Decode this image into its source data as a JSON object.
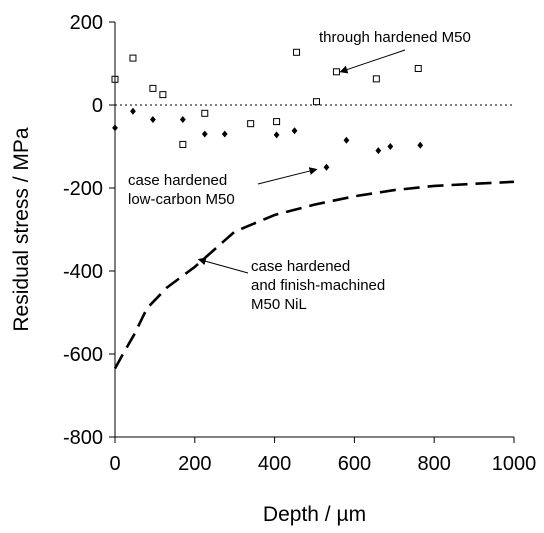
{
  "chart_data": {
    "type": "scatter",
    "xlabel": "Depth / µm",
    "ylabel": "Residual stress / MPa",
    "xlim": [
      0,
      1000
    ],
    "ylim": [
      -800,
      200
    ],
    "xticks": [
      0,
      200,
      400,
      600,
      800,
      1000
    ],
    "yticks": [
      -800,
      -600,
      -400,
      -200,
      0,
      200
    ],
    "xtick_labels": [
      "0",
      "200",
      "400",
      "600",
      "800",
      "1000"
    ],
    "ytick_labels": [
      "-800",
      "-600",
      "-400",
      "-200",
      "0",
      "200"
    ],
    "grid": false,
    "zero_line": "dotted",
    "series": [
      {
        "name": "through hardened M50",
        "marker": "open-square",
        "color": "#000000",
        "x": [
          0,
          45,
          95,
          120,
          170,
          225,
          340,
          405,
          455,
          555,
          505,
          655,
          760
        ],
        "y": [
          62,
          113,
          40,
          25,
          -95,
          -20,
          -45,
          -40,
          127,
          80,
          8,
          63,
          88
        ]
      },
      {
        "name": "case hardened low-carbon M50",
        "marker": "filled-diamond",
        "color": "#000000",
        "x": [
          0,
          45,
          95,
          170,
          225,
          275,
          405,
          450,
          530,
          580,
          660,
          690,
          765
        ],
        "y": [
          -55,
          -15,
          -35,
          -35,
          -70,
          -70,
          -72,
          -62,
          -150,
          -85,
          -110,
          -100,
          -97
        ]
      },
      {
        "name": "case hardened and finish-machined M50 NiL",
        "style": "dashed-line",
        "color": "#000000",
        "x": [
          0,
          20,
          50,
          80,
          130,
          200,
          300,
          400,
          500,
          600,
          700,
          800,
          900,
          1000
        ],
        "y": [
          -635,
          -600,
          -550,
          -490,
          -440,
          -390,
          -305,
          -265,
          -240,
          -220,
          -205,
          -195,
          -190,
          -185
        ]
      }
    ],
    "annotations": [
      {
        "lines": [
          "through hardened M50"
        ],
        "arrow_to": [
          565,
          80
        ]
      },
      {
        "lines": [
          "case hardened",
          "low-carbon M50"
        ],
        "arrow_to": [
          505,
          -155
        ]
      },
      {
        "lines": [
          "case hardened",
          "and finish-machined",
          "M50 NiL"
        ],
        "arrow_to": [
          210,
          -372
        ]
      }
    ]
  }
}
